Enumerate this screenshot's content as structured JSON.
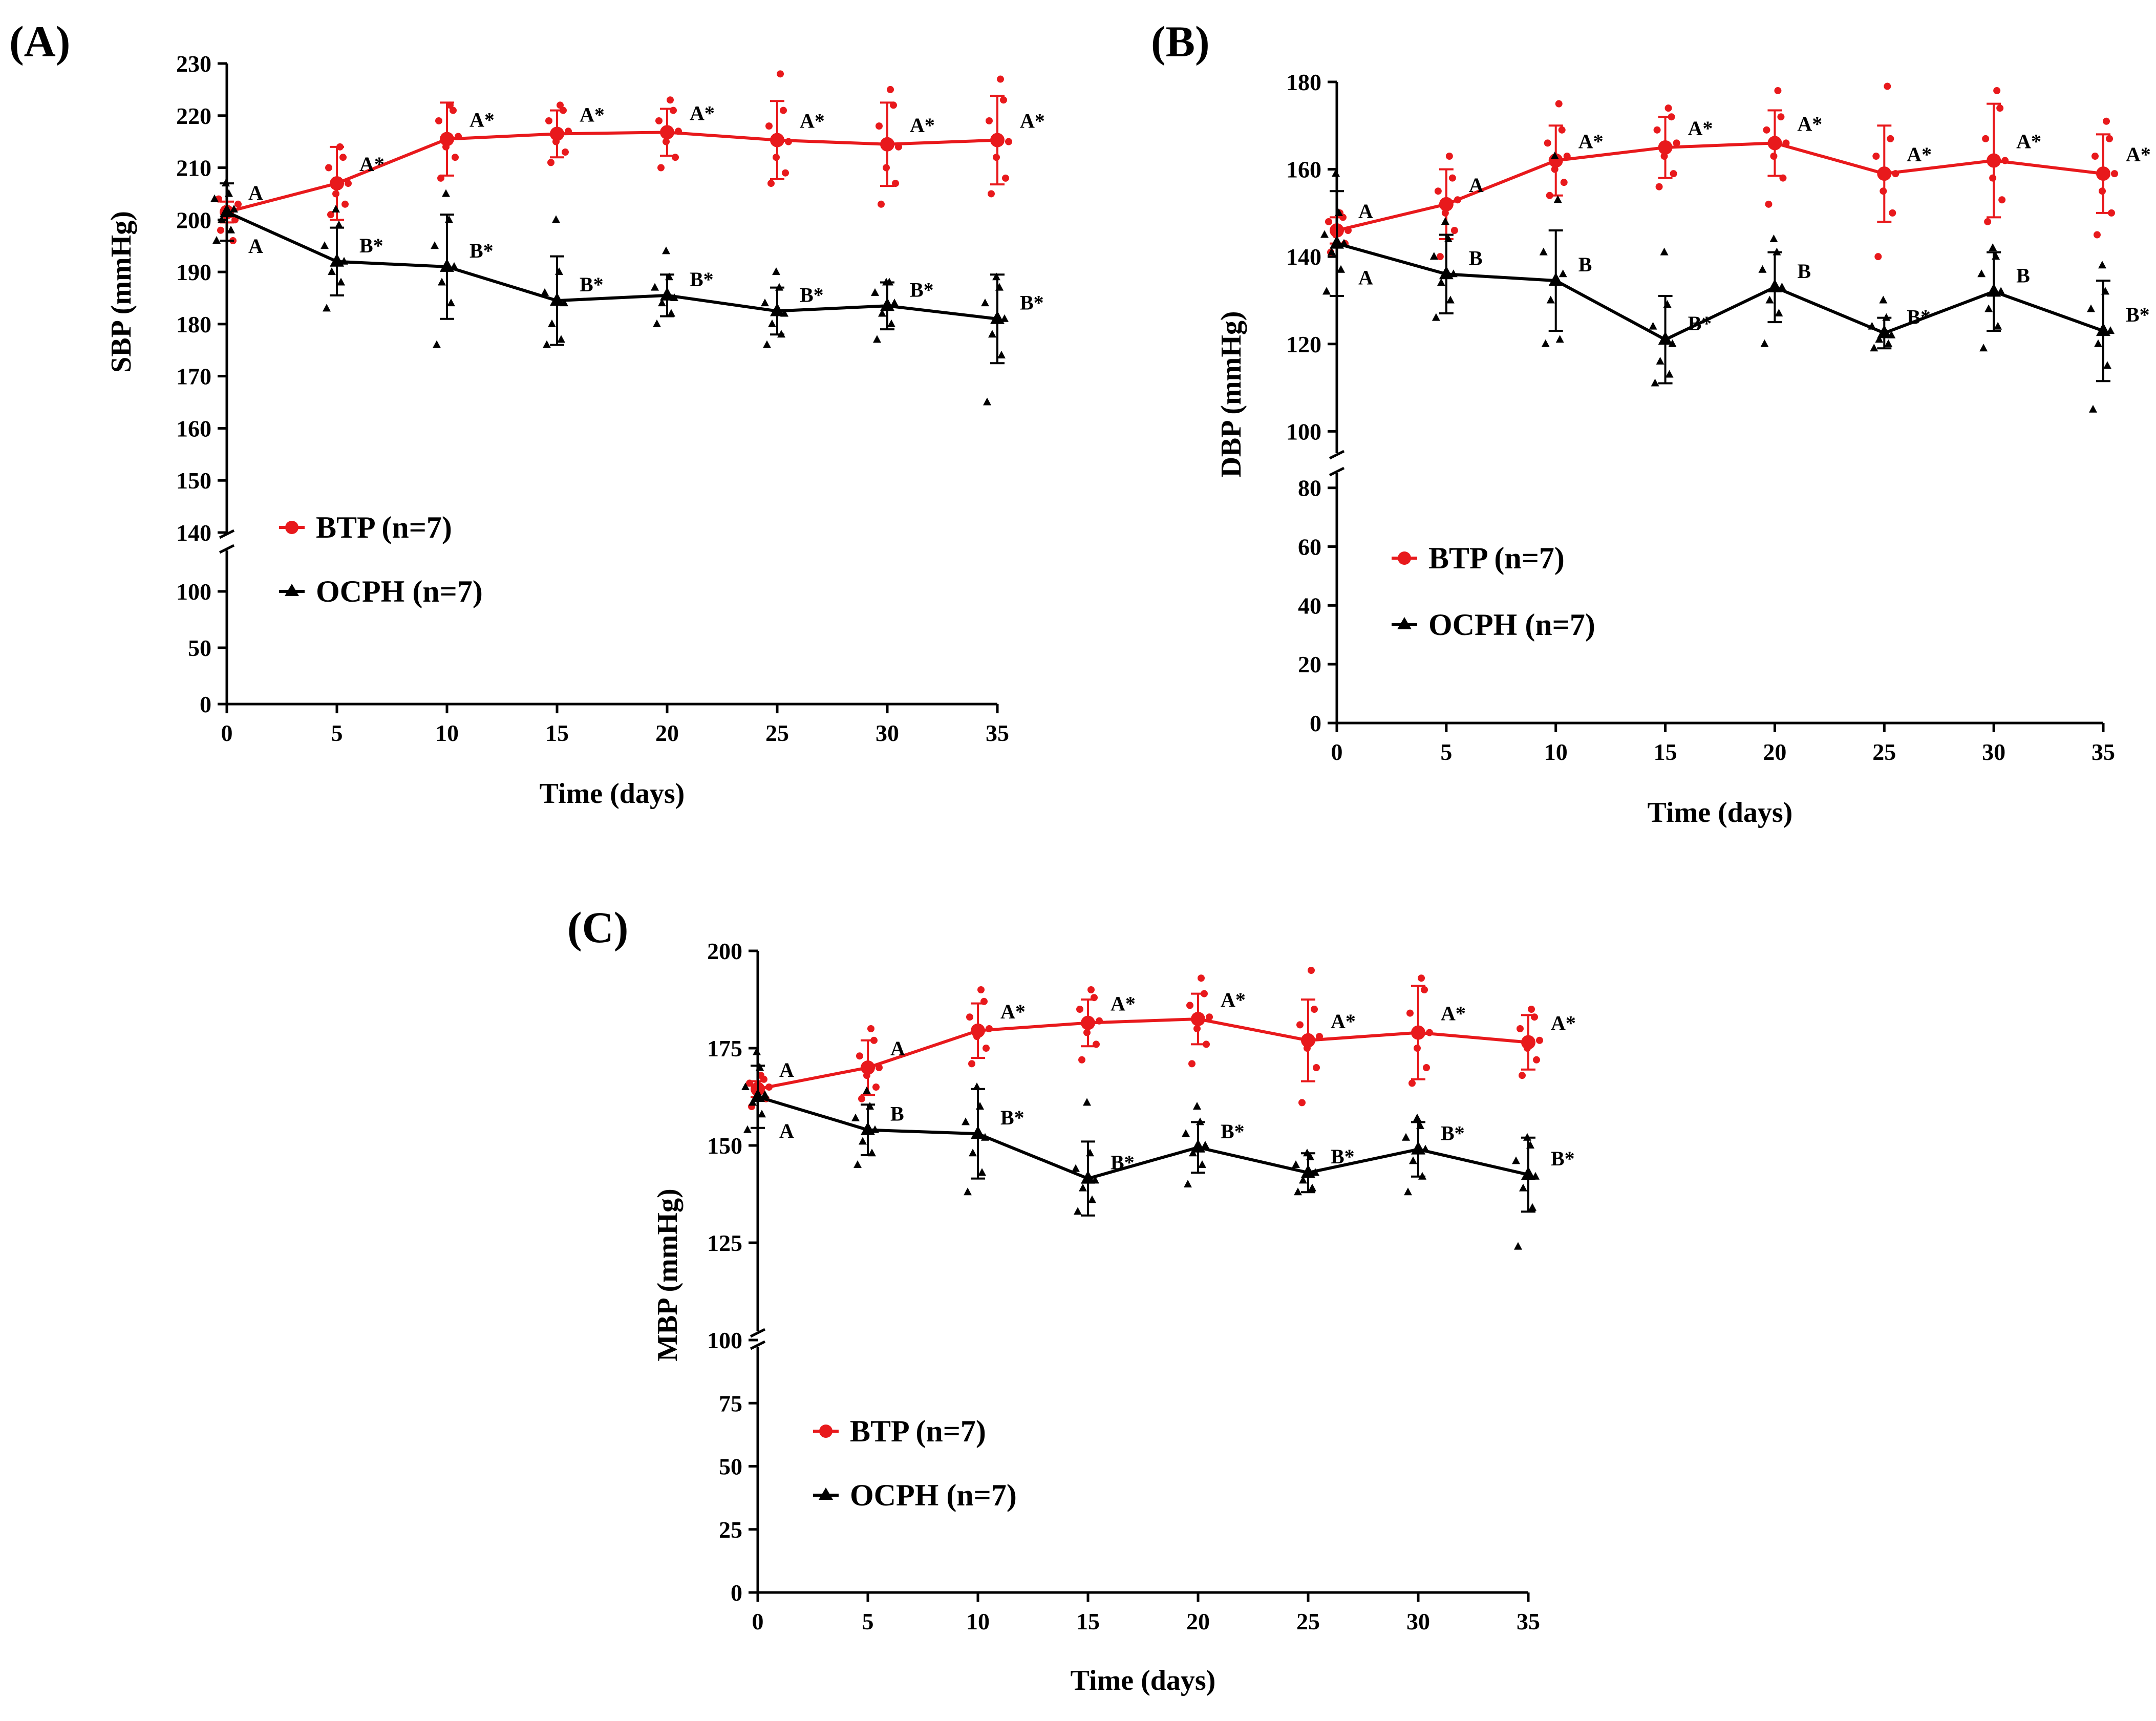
{
  "chart_data": [
    {
      "type": "line",
      "panel_label": "(A)",
      "xlabel": "Time (days)",
      "ylabel": "SBP (mmHg)",
      "x": [
        0,
        5,
        10,
        15,
        20,
        25,
        30,
        35
      ],
      "xlim": [
        0,
        35
      ],
      "ylim": [
        0,
        230
      ],
      "axis_break": [
        100,
        140
      ],
      "yticks": [
        0,
        50,
        100,
        140,
        150,
        160,
        170,
        180,
        190,
        200,
        210,
        220,
        230
      ],
      "legend_position": "lower-left",
      "series": [
        {
          "name": "BTP (n=7)",
          "color": "#e8191c",
          "marker": "circle",
          "values": [
            201.5,
            207,
            215.5,
            216.5,
            216.8,
            215.3,
            214.5,
            215.3
          ],
          "errors": [
            2,
            7,
            7,
            4.5,
            4.5,
            7.5,
            8,
            8.5
          ],
          "labels": [
            "A",
            "A*",
            "A*",
            "A*",
            "A*",
            "A*",
            "A*",
            "A*"
          ],
          "points": [
            [
              198,
              200,
              202,
              203,
              204,
              196,
              201
            ],
            [
              201,
              203,
              205,
              207,
              210,
              212,
              214
            ],
            [
              208,
              212,
              214,
              216,
              219,
              221,
              222
            ],
            [
              211,
              213,
              215,
              217,
              219,
              221,
              222
            ],
            [
              210,
              212,
              215,
              217,
              219,
              221,
              223
            ],
            [
              207,
              209,
              212,
              215,
              218,
              221,
              228
            ],
            [
              203,
              207,
              210,
              214,
              218,
              222,
              225
            ],
            [
              205,
              208,
              212,
              215,
              219,
              223,
              227
            ]
          ]
        },
        {
          "name": "OCPH (n=7)",
          "color": "#000000",
          "marker": "triangle",
          "values": [
            201.5,
            192,
            191,
            184.5,
            185.5,
            182.5,
            183.5,
            181
          ],
          "errors": [
            5.5,
            6.5,
            10,
            8.5,
            4,
            4.5,
            4.5,
            8.5
          ],
          "labels": [
            "A",
            "B*",
            "B*",
            "B*",
            "B*",
            "B*",
            "B*",
            "B*"
          ],
          "points": [
            [
              196,
              198,
              200,
              202,
              204,
              205,
              207
            ],
            [
              183,
              188,
              190,
              192,
              195,
              199,
              202
            ],
            [
              176,
              184,
              188,
              191,
              195,
              200,
              205
            ],
            [
              176,
              177,
              180,
              184,
              186,
              190,
              200
            ],
            [
              180,
              182,
              184,
              185,
              187,
              189,
              194
            ],
            [
              176,
              178,
              180,
              182,
              184,
              187,
              190
            ],
            [
              177,
              180,
              182,
              184,
              186,
              188,
              188
            ],
            [
              165,
              174,
              178,
              181,
              184,
              187,
              189
            ]
          ]
        }
      ]
    },
    {
      "type": "line",
      "panel_label": "(B)",
      "xlabel": "Time (days)",
      "ylabel": "DBP (mmHg)",
      "x": [
        0,
        5,
        10,
        15,
        20,
        25,
        30,
        35
      ],
      "xlim": [
        0,
        35
      ],
      "ylim": [
        0,
        180
      ],
      "axis_break": [
        85,
        95
      ],
      "yticks": [
        0,
        20,
        40,
        60,
        80,
        100,
        120,
        140,
        160,
        180
      ],
      "legend_position": "lower-left",
      "series": [
        {
          "name": "BTP (n=7)",
          "color": "#e8191c",
          "marker": "circle",
          "values": [
            146,
            152,
            162,
            165,
            166,
            159,
            162,
            159
          ],
          "errors": [
            3,
            8,
            8,
            7,
            7.5,
            11,
            13,
            9
          ],
          "labels": [
            "A",
            "A",
            "A*",
            "A*",
            "A*",
            "A*",
            "A*",
            "A*"
          ],
          "points": [
            [
              141,
              143,
              145,
              146,
              148,
              149,
              150
            ],
            [
              140,
              146,
              150,
              153,
              155,
              158,
              163
            ],
            [
              154,
              157,
              160,
              163,
              166,
              169,
              175
            ],
            [
              156,
              159,
              163,
              166,
              169,
              172,
              174
            ],
            [
              152,
              158,
              163,
              166,
              169,
              172,
              178
            ],
            [
              140,
              150,
              155,
              159,
              163,
              167,
              179
            ],
            [
              148,
              153,
              158,
              162,
              167,
              174,
              178
            ],
            [
              145,
              150,
              155,
              159,
              163,
              167,
              171
            ]
          ]
        },
        {
          "name": "OCPH (n=7)",
          "color": "#000000",
          "marker": "triangle",
          "values": [
            143,
            136,
            134.5,
            121,
            133,
            122.5,
            132,
            123
          ],
          "errors": [
            12,
            9,
            11.5,
            10,
            8,
            3.5,
            9,
            11.5
          ],
          "labels": [
            "A",
            "B",
            "B",
            "B*",
            "B",
            "B*",
            "B",
            "B*"
          ],
          "points": [
            [
              132,
              137,
              141,
              143,
              145,
              150,
              159
            ],
            [
              126,
              130,
              134,
              136,
              140,
              144,
              148
            ],
            [
              120,
              121,
              130,
              136,
              141,
              153,
              163
            ],
            [
              111,
              113,
              116,
              120,
              124,
              129,
              141
            ],
            [
              120,
              127,
              130,
              133,
              137,
              141,
              144
            ],
            [
              119,
              120,
              121,
              122,
              124,
              126,
              130
            ],
            [
              119,
              124,
              128,
              132,
              136,
              140,
              142
            ],
            [
              105,
              115,
              120,
              123,
              128,
              132,
              138
            ]
          ]
        }
      ]
    },
    {
      "type": "line",
      "panel_label": "(C)",
      "xlabel": "Time (days)",
      "ylabel": "MBP (mmHg)",
      "x": [
        0,
        5,
        10,
        15,
        20,
        25,
        30,
        35
      ],
      "xlim": [
        0,
        35
      ],
      "ylim": [
        0,
        200
      ],
      "axis_break": [
        100,
        100
      ],
      "yticks": [
        0,
        25,
        50,
        75,
        100,
        125,
        150,
        175,
        200
      ],
      "legend_position": "lower-left",
      "series": [
        {
          "name": "BTP (n=7)",
          "color": "#e8191c",
          "marker": "circle",
          "values": [
            164.5,
            170,
            179.5,
            181.5,
            182.5,
            177,
            179,
            176.5
          ],
          "errors": [
            2,
            7,
            7,
            6,
            6.5,
            10.5,
            12,
            7
          ],
          "labels": [
            "A",
            "A",
            "A*",
            "A*",
            "A*",
            "A*",
            "A*",
            "A*"
          ],
          "points": [
            [
              160,
              162,
              164,
              165,
              166,
              167,
              168
            ],
            [
              162,
              165,
              168,
              170,
              173,
              177,
              180
            ],
            [
              171,
              175,
              178,
              180,
              183,
              187,
              190
            ],
            [
              172,
              176,
              179,
              182,
              185,
              188,
              190
            ],
            [
              171,
              176,
              180,
              183,
              186,
              189,
              193
            ],
            [
              161,
              170,
              175,
              178,
              181,
              185,
              195
            ],
            [
              166,
              170,
              175,
              179,
              184,
              190,
              193
            ],
            [
              168,
              172,
              175,
              177,
              180,
              183,
              185
            ]
          ]
        },
        {
          "name": "OCPH (n=7)",
          "color": "#000000",
          "marker": "triangle",
          "values": [
            162.5,
            154,
            153,
            141.5,
            149.5,
            143,
            149,
            142.5
          ],
          "errors": [
            8,
            6.5,
            11.5,
            9.5,
            6.5,
            5,
            7,
            9.5
          ],
          "labels": [
            "A",
            "B",
            "B*",
            "B*",
            "B*",
            "B*",
            "B*",
            "B*"
          ],
          "points": [
            [
              154,
              158,
              161,
              163,
              165,
              170,
              174
            ],
            [
              145,
              148,
              151,
              154,
              157,
              160,
              164
            ],
            [
              138,
              143,
              148,
              152,
              156,
              160,
              165
            ],
            [
              133,
              136,
              139,
              141,
              144,
              148,
              161
            ],
            [
              140,
              145,
              148,
              150,
              153,
              156,
              160
            ],
            [
              138,
              139,
              141,
              143,
              145,
              147,
              148
            ],
            [
              138,
              142,
              146,
              149,
              152,
              155,
              157
            ],
            [
              124,
              134,
              139,
              142,
              146,
              150,
              152
            ]
          ]
        }
      ]
    }
  ]
}
